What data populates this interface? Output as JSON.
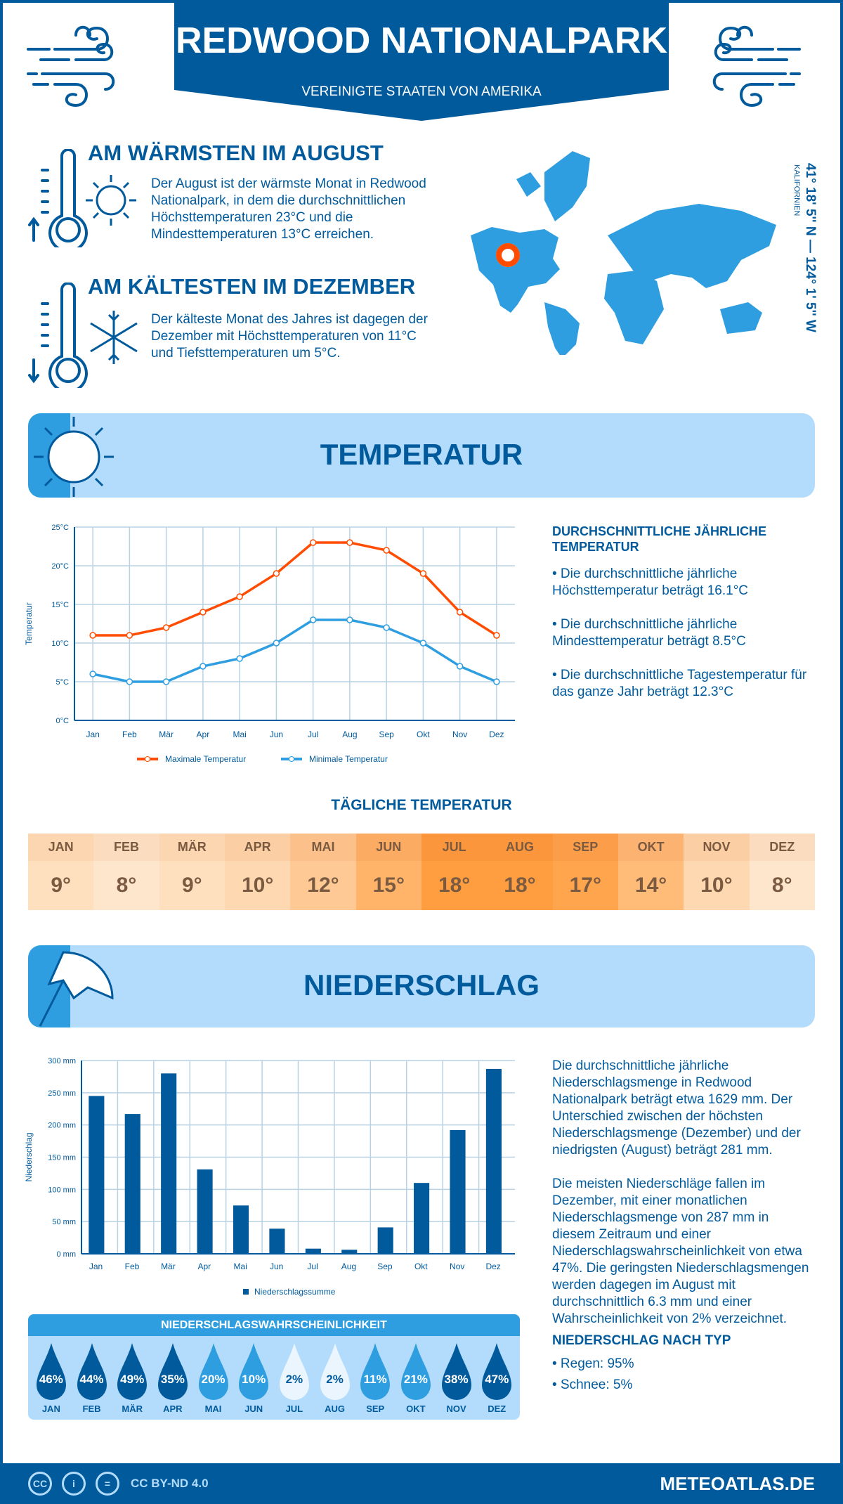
{
  "header": {
    "title": "REDWOOD NATIONALPARK",
    "subtitle": "VEREINIGTE STAATEN VON AMERIKA"
  },
  "warm": {
    "heading": "AM WÄRMSTEN IM AUGUST",
    "text": "Der August ist der wärmste Monat in Redwood Nationalpark, in dem die durchschnittlichen Höchsttemperaturen 23°C und die Mindesttemperaturen 13°C erreichen."
  },
  "cold": {
    "heading": "AM KÄLTESTEN IM DEZEMBER",
    "text": "Der kälteste Monat des Jahres ist dagegen der Dezember mit Höchsttemperaturen von 11°C und Tiefsttemperaturen um 5°C."
  },
  "location": {
    "coords": "41° 18' 5'' N — 124° 1' 5'' W",
    "region": "KALIFORNIEN",
    "marker_color": "#ff4c00"
  },
  "temp_section": {
    "title": "TEMPERATUR",
    "info_heading": "DURCHSCHNITTLICHE JÄHRLICHE TEMPERATUR",
    "info": [
      "• Die durchschnittliche jährliche Höchsttemperatur beträgt 16.1°C",
      "• Die durchschnittliche jährliche Mindesttemperatur beträgt 8.5°C",
      "• Die durchschnittliche Tagestemperatur für das ganze Jahr beträgt 12.3°C"
    ]
  },
  "daily": {
    "title": "TÄGLICHE TEMPERATUR",
    "months": [
      "JAN",
      "FEB",
      "MÄR",
      "APR",
      "MAI",
      "JUN",
      "JUL",
      "AUG",
      "SEP",
      "OKT",
      "NOV",
      "DEZ"
    ],
    "values": [
      "9°",
      "8°",
      "9°",
      "10°",
      "12°",
      "15°",
      "18°",
      "18°",
      "17°",
      "14°",
      "10°",
      "8°"
    ]
  },
  "precip_section": {
    "title": "NIEDERSCHLAG",
    "text1": "Die durchschnittliche jährliche Niederschlagsmenge in Redwood Nationalpark beträgt etwa 1629 mm. Der Unterschied zwischen der höchsten Niederschlagsmenge (Dezember) und der niedrigsten (August) beträgt 281 mm.",
    "text2": "Die meisten Niederschläge fallen im Dezember, mit einer monatlichen Niederschlagsmenge von 287 mm in diesem Zeitraum und einer Niederschlagswahrscheinlichkeit von etwa 47%. Die geringsten Niederschlagsmengen werden dagegen im August mit durchschnittlich 6.3 mm und einer Wahrscheinlichkeit von 2% verzeichnet.",
    "type_heading": "NIEDERSCHLAG NACH TYP",
    "types": [
      "• Regen: 95%",
      "• Schnee: 5%"
    ]
  },
  "probability": {
    "title": "NIEDERSCHLAGSWAHRSCHEINLICHKEIT",
    "months": [
      "JAN",
      "FEB",
      "MÄR",
      "APR",
      "MAI",
      "JUN",
      "JUL",
      "AUG",
      "SEP",
      "OKT",
      "NOV",
      "DEZ"
    ],
    "values": [
      46,
      44,
      49,
      35,
      20,
      10,
      2,
      2,
      11,
      21,
      38,
      47
    ],
    "labels": [
      "46%",
      "44%",
      "49%",
      "35%",
      "20%",
      "10%",
      "2%",
      "2%",
      "11%",
      "21%",
      "38%",
      "47%"
    ]
  },
  "footer": {
    "license": "CC BY-ND 4.0",
    "site": "METEOATLAS.DE",
    "cc_icon": "CC",
    "by_icon": "i",
    "nd_icon": "="
  },
  "colors": {
    "dark": "#005a9c",
    "mid": "#2e9ee0",
    "light": "#b3dcfc",
    "max": "#ff4c00",
    "min": "#2e9ee0"
  },
  "chart_data": [
    {
      "type": "line",
      "categories": [
        "Jan",
        "Feb",
        "Mär",
        "Apr",
        "Mai",
        "Jun",
        "Jul",
        "Aug",
        "Sep",
        "Okt",
        "Nov",
        "Dez"
      ],
      "ylabel": "Temperatur",
      "ylim": [
        0,
        25
      ],
      "yticks": [
        "0°C",
        "5°C",
        "10°C",
        "15°C",
        "20°C",
        "25°C"
      ],
      "grid": true,
      "legend": "bottom",
      "series": [
        {
          "name": "Maximale Temperatur",
          "values": [
            11,
            11,
            12,
            14,
            16,
            19,
            23,
            23,
            22,
            19,
            14,
            11
          ],
          "color": "#ff4c00"
        },
        {
          "name": "Minimale Temperatur",
          "values": [
            6,
            5,
            5,
            7,
            8,
            10,
            13,
            13,
            12,
            10,
            7,
            5
          ],
          "color": "#2e9ee0"
        }
      ]
    },
    {
      "type": "bar",
      "categories": [
        "Jan",
        "Feb",
        "Mär",
        "Apr",
        "Mai",
        "Jun",
        "Jul",
        "Aug",
        "Sep",
        "Okt",
        "Nov",
        "Dez"
      ],
      "ylabel": "Niederschlag",
      "ylim": [
        0,
        300
      ],
      "yticks": [
        "0 mm",
        "50 mm",
        "100 mm",
        "150 mm",
        "200 mm",
        "250 mm",
        "300 mm"
      ],
      "grid": true,
      "legend": "bottom",
      "series": [
        {
          "name": "Niederschlagssumme",
          "values": [
            245,
            217,
            280,
            131,
            75,
            39,
            8,
            6.3,
            41,
            110,
            192,
            287
          ],
          "color": "#005a9c"
        }
      ]
    }
  ]
}
